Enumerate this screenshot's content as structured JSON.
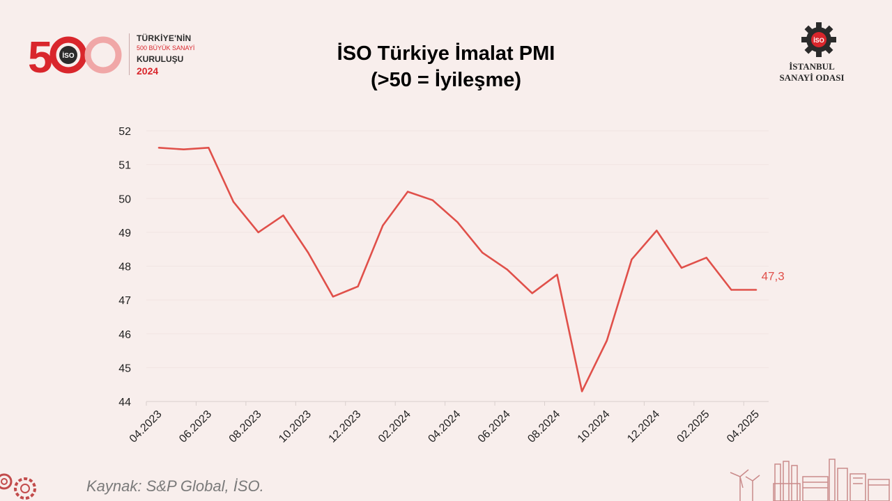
{
  "header": {
    "title_line1": "İSO Türkiye İmalat PMI",
    "title_line2": "(>50 = İyileşme)"
  },
  "logo_left": {
    "number": "500",
    "badge": "İSO",
    "line1": "TÜRKİYE'NİN",
    "line2": "500 BÜYÜK SANAYİ",
    "line3": "KURULUŞU",
    "line4": "2024"
  },
  "logo_right": {
    "badge": "İSO",
    "line1": "İSTANBUL",
    "line2": "SANAYİ ODASI"
  },
  "source": "Kaynak: S&P Global, İSO.",
  "colors": {
    "line": "#e0504a",
    "accent_red": "#d9262c",
    "background": "#f8eeec",
    "axis": "#d9cfcd"
  },
  "chart_data": {
    "type": "line",
    "title": "İSO Türkiye İmalat PMI",
    "subtitle": "(>50 = İyileşme)",
    "xlabel": "",
    "ylabel": "",
    "ylim": [
      44,
      52
    ],
    "yticks": [
      "44",
      "45",
      "46",
      "47",
      "48",
      "49",
      "50",
      "51",
      "52"
    ],
    "grid": false,
    "x": [
      "04.2023",
      "05.2023",
      "06.2023",
      "07.2023",
      "08.2023",
      "09.2023",
      "10.2023",
      "11.2023",
      "12.2023",
      "01.2024",
      "02.2024",
      "03.2024",
      "04.2024",
      "05.2024",
      "06.2024",
      "07.2024",
      "08.2024",
      "09.2024",
      "10.2024",
      "11.2024",
      "12.2024",
      "01.2025",
      "02.2025",
      "03.2025",
      "04.2025"
    ],
    "xtick_labels": [
      "04.2023",
      "06.2023",
      "08.2023",
      "10.2023",
      "12.2023",
      "02.2024",
      "04.2024",
      "06.2024",
      "08.2024",
      "10.2024",
      "12.2024",
      "02.2025",
      "04.2025"
    ],
    "series": [
      {
        "values": [
          51.5,
          51.45,
          51.5,
          49.9,
          49.0,
          49.5,
          48.4,
          47.1,
          47.4,
          49.2,
          50.2,
          49.95,
          49.3,
          48.4,
          47.9,
          47.2,
          47.75,
          44.3,
          45.8,
          48.2,
          49.05,
          47.95,
          48.25,
          47.3,
          47.3
        ]
      }
    ],
    "annotation": "47,3"
  }
}
